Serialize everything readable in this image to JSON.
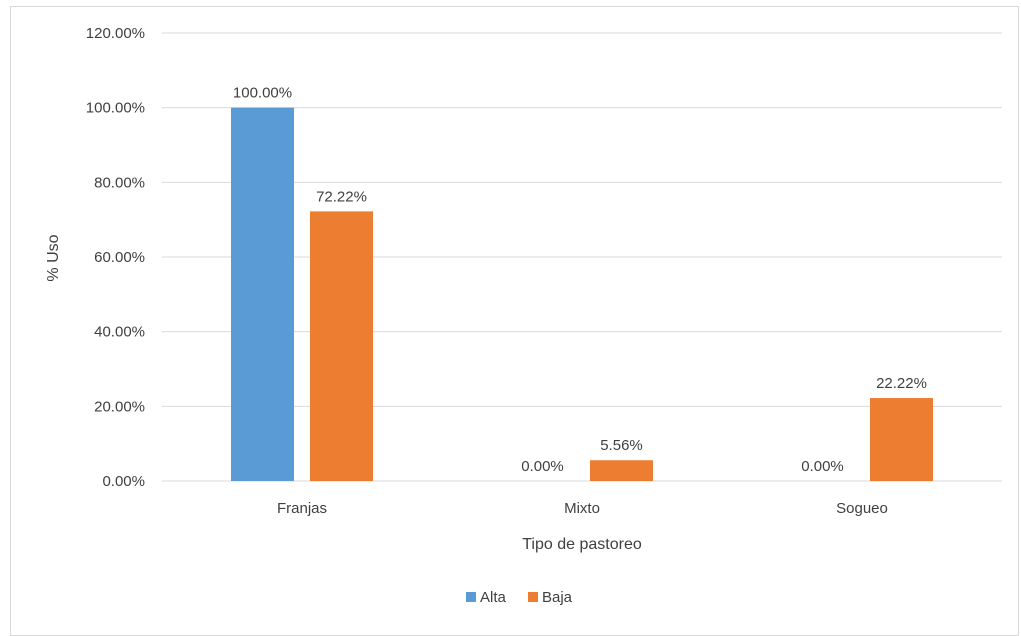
{
  "chart_data": {
    "type": "bar",
    "categories": [
      "Franjas",
      "Mixto",
      "Sogueo"
    ],
    "series": [
      {
        "name": "Alta",
        "values": [
          100.0,
          0.0,
          0.0
        ],
        "labels": [
          "100.00%",
          "0.00%",
          "0.00%"
        ],
        "color": "#5b9bd5"
      },
      {
        "name": "Baja",
        "values": [
          72.22,
          5.56,
          22.22
        ],
        "labels": [
          "72.22%",
          "5.56%",
          "22.22%"
        ],
        "color": "#ed7d31"
      }
    ],
    "title": "",
    "xlabel": "Tipo de pastoreo",
    "ylabel": "% Uso",
    "ylim": [
      0,
      120
    ],
    "yticks": [
      0,
      20,
      40,
      60,
      80,
      100,
      120
    ],
    "ytick_labels": [
      "0.00%",
      "20.00%",
      "40.00%",
      "60.00%",
      "80.00%",
      "100.00%",
      "120.00%"
    ],
    "grid": true,
    "legend_position": "bottom",
    "gridline_color": "#d9d9d9",
    "text_color": "#404040"
  }
}
